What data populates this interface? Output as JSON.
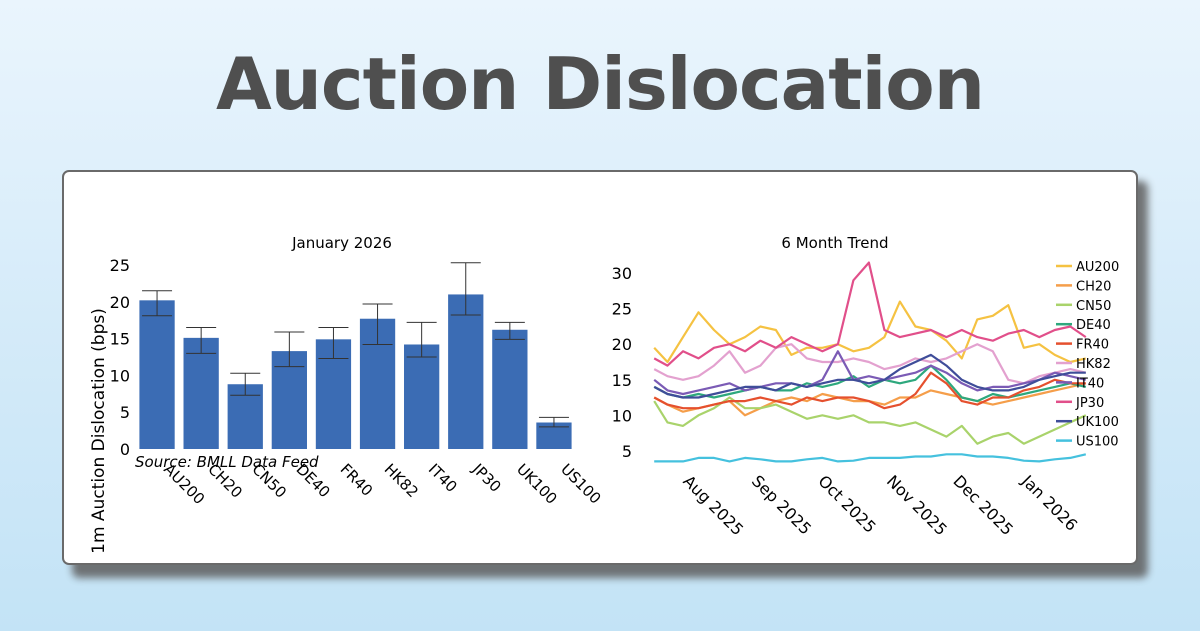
{
  "title": "Auction Dislocation",
  "chart_data": [
    {
      "type": "bar",
      "title": "January 2026",
      "xlabel": "",
      "ylabel": "1m Auction Dislocation (bps)",
      "ylim": [
        0,
        25
      ],
      "yticks": [
        0,
        5,
        10,
        15,
        20,
        25
      ],
      "bar_color": "#3b6cb4",
      "error_color": "#333333",
      "source": "Source: BMLL Data Feed",
      "categories": [
        "AU200",
        "CH20",
        "CN50",
        "DE40",
        "FR40",
        "HK82",
        "IT40",
        "JP30",
        "UK100",
        "US100"
      ],
      "values": [
        20.2,
        15.1,
        8.8,
        13.3,
        14.9,
        17.7,
        14.2,
        21.0,
        16.2,
        3.6
      ],
      "error_high": [
        21.5,
        16.5,
        10.3,
        15.9,
        16.5,
        19.7,
        17.2,
        25.3,
        17.2,
        4.3
      ],
      "error_low": [
        18.1,
        13.0,
        7.3,
        11.2,
        12.3,
        14.2,
        12.5,
        18.2,
        14.9,
        3.0
      ]
    },
    {
      "type": "line",
      "title": "6 Month Trend",
      "xlabel": "",
      "ylabel": "",
      "xlim": [
        "2025-07-17",
        "2026-01-30"
      ],
      "ylim": [
        3,
        32
      ],
      "yticks": [
        5,
        10,
        15,
        20,
        25,
        30
      ],
      "xtick_labels": [
        "Aug 2025",
        "Sep 2025",
        "Oct 2025",
        "Nov 2025",
        "Dec 2025",
        "Jan 2026"
      ],
      "xtick_dates": [
        "2025-08-01",
        "2025-09-01",
        "2025-10-01",
        "2025-11-01",
        "2025-12-01",
        "2026-01-01"
      ],
      "x": [
        "2025-07-18",
        "2025-07-24",
        "2025-07-31",
        "2025-08-07",
        "2025-08-14",
        "2025-08-21",
        "2025-08-28",
        "2025-09-04",
        "2025-09-11",
        "2025-09-18",
        "2025-09-25",
        "2025-10-02",
        "2025-10-09",
        "2025-10-16",
        "2025-10-23",
        "2025-10-30",
        "2025-11-06",
        "2025-11-13",
        "2025-11-20",
        "2025-11-27",
        "2025-12-04",
        "2025-12-11",
        "2025-12-18",
        "2025-12-25",
        "2026-01-01",
        "2026-01-08",
        "2026-01-15",
        "2026-01-22",
        "2026-01-29"
      ],
      "legend_position": "right",
      "series": [
        {
          "name": "AU200",
          "color": "#f5c242",
          "values": [
            19.5,
            17.5,
            21,
            24.5,
            22,
            20,
            21,
            22.5,
            22,
            18.5,
            19.5,
            19.5,
            20,
            19,
            19.5,
            21,
            26,
            22.5,
            22,
            20.5,
            18,
            23.5,
            24,
            25.5,
            19.5,
            20,
            18.5,
            17.5,
            18
          ]
        },
        {
          "name": "CH20",
          "color": "#f59e4a",
          "values": [
            12.5,
            11.5,
            10.5,
            11,
            11.5,
            12,
            10,
            11,
            12,
            12.5,
            12,
            13,
            12.5,
            12,
            12,
            11.5,
            12.5,
            12.5,
            13.5,
            13,
            12.5,
            12,
            11.5,
            12,
            12.5,
            13,
            13.5,
            14,
            14.5
          ]
        },
        {
          "name": "CN50",
          "color": "#a9d36b",
          "values": [
            12,
            9,
            8.5,
            10,
            11,
            12.5,
            11,
            11,
            11.5,
            10.5,
            9.5,
            10,
            9.5,
            10,
            9,
            9,
            8.5,
            9,
            8,
            7,
            8.5,
            6,
            7,
            7.5,
            6,
            7,
            8,
            9,
            10
          ]
        },
        {
          "name": "DE40",
          "color": "#2ea87d",
          "values": [
            14,
            13,
            12.5,
            13,
            12.5,
            13,
            13.5,
            14,
            13.5,
            13.5,
            14.5,
            14,
            14.5,
            15.5,
            14,
            15,
            14.5,
            15,
            17,
            15,
            12.5,
            12,
            13,
            12.5,
            13,
            13.5,
            14,
            14.5,
            14
          ]
        },
        {
          "name": "FR40",
          "color": "#e5502e",
          "values": [
            12.5,
            11.5,
            11,
            11,
            11.5,
            12,
            12,
            12.5,
            12,
            11.5,
            12.5,
            12,
            12.5,
            12.5,
            12,
            11,
            11.5,
            13,
            16,
            14.5,
            12,
            11.5,
            12.5,
            12.5,
            13.5,
            14,
            15,
            14.5,
            14.5
          ]
        },
        {
          "name": "HK82",
          "color": "#e3a1cf",
          "values": [
            16.5,
            15.5,
            15,
            15.5,
            17,
            19,
            16,
            17,
            19.5,
            20,
            18,
            17.5,
            17.5,
            18,
            17.5,
            16.5,
            17,
            18,
            17.5,
            18,
            19,
            20,
            19,
            15,
            14.5,
            15.5,
            16,
            16.5,
            16
          ]
        },
        {
          "name": "IT40",
          "color": "#7b5bb5",
          "values": [
            15,
            13.5,
            13,
            13.5,
            14,
            14.5,
            13.5,
            14,
            14.5,
            14.5,
            14,
            15,
            19,
            15,
            15.5,
            15,
            15.5,
            16,
            17,
            16,
            14.5,
            13.5,
            14,
            14,
            14.5,
            15,
            16,
            15.5,
            15
          ]
        },
        {
          "name": "JP30",
          "color": "#e14f8a",
          "values": [
            18,
            17,
            19,
            18,
            19.5,
            20,
            19,
            20.5,
            19.5,
            21,
            20,
            19,
            20,
            29,
            31.5,
            22,
            21,
            21.5,
            22,
            21,
            22,
            21,
            20.5,
            21.5,
            22,
            21,
            22,
            22.5,
            21
          ]
        },
        {
          "name": "UK100",
          "color": "#3f4d99",
          "values": [
            14,
            13,
            12.5,
            12.5,
            13,
            13.5,
            14,
            14,
            13.5,
            14.5,
            14,
            14.5,
            15,
            15,
            14.5,
            15,
            16.5,
            17.5,
            18.5,
            17,
            15,
            14,
            13.5,
            13.5,
            14,
            15,
            15.5,
            16,
            16
          ]
        },
        {
          "name": "US100",
          "color": "#45c1de",
          "values": [
            3.5,
            3.5,
            3.5,
            4,
            4,
            3.5,
            4,
            3.8,
            3.5,
            3.5,
            3.8,
            4,
            3.5,
            3.6,
            4,
            4,
            4,
            4.2,
            4.2,
            4.5,
            4.5,
            4.2,
            4.2,
            4,
            3.6,
            3.5,
            3.8,
            4,
            4.5
          ]
        }
      ]
    }
  ]
}
